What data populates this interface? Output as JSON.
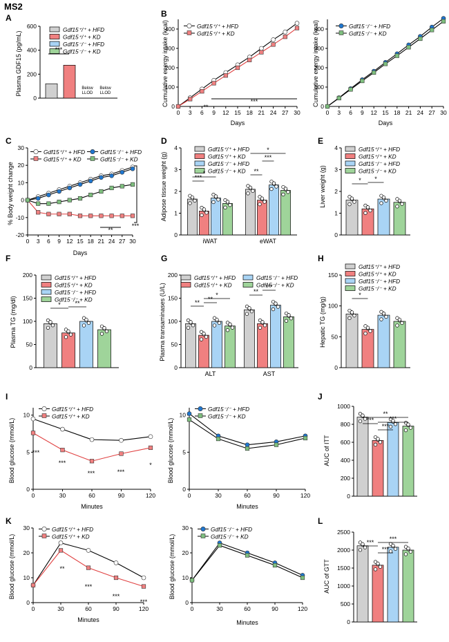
{
  "figure_label": "MS2",
  "colors": {
    "HFD_wt": "#d0d0d0",
    "KD_wt": "#f08080",
    "HFD_ko": "#a9d4f5",
    "KD_ko": "#9fd49a",
    "blue": "#1f77d0",
    "green": "#7fbf7f",
    "black": "#000000",
    "red": "#e04040"
  },
  "legend_names": {
    "wt_HFD": "Gdf15+/+ + HFD",
    "wt_KD": "Gdf15+/+ + KD",
    "ko_HFD": "Gdf15-/- + HFD",
    "ko_KD": "Gdf15-/- + KD",
    "ko_HFD2": "Gdf15-/- +HFD"
  },
  "chart_data": [
    {
      "panel": "A",
      "type": "bar",
      "ylabel": "Plasma GDF15 (pg/mL)",
      "ylim": [
        0,
        600
      ],
      "yticks": [
        "0",
        "200",
        "400",
        "600"
      ],
      "categories": [
        "Gdf15+/+ + HFD",
        "Gdf15+/+ + KD",
        "Gdf15-/- + HFD",
        "Gdf15-/- + KD"
      ],
      "values": [
        120,
        275,
        0,
        0
      ],
      "bar_labels": [
        "",
        "",
        "Below LLOD",
        "Below LLOD"
      ],
      "significance": [
        "***"
      ]
    },
    {
      "panel": "B1",
      "type": "line",
      "ylabel": "Cumulative energy intake (kcal)",
      "xlabel": "Days",
      "xticks": [
        "0",
        "3",
        "6",
        "9",
        "12",
        "15",
        "18",
        "21",
        "24",
        "27",
        "30"
      ],
      "yticks": [
        "0",
        "100",
        "200",
        "300",
        "400"
      ],
      "ylim": [
        0,
        450
      ],
      "series": [
        {
          "name": "Gdf15+/+ + HFD",
          "x": [
            0,
            3,
            6,
            9,
            12,
            15,
            18,
            21,
            24,
            27,
            30
          ],
          "values": [
            0,
            45,
            90,
            135,
            175,
            215,
            255,
            300,
            345,
            385,
            430
          ]
        },
        {
          "name": "Gdf15+/+ + KD",
          "x": [
            0,
            3,
            6,
            9,
            12,
            15,
            18,
            21,
            24,
            27,
            30
          ],
          "values": [
            0,
            38,
            78,
            120,
            160,
            200,
            240,
            280,
            320,
            360,
            405
          ]
        }
      ],
      "significance": [
        "**",
        "***"
      ]
    },
    {
      "panel": "B2",
      "type": "line",
      "xlabel": "Days",
      "xticks": [
        "0",
        "3",
        "6",
        "9",
        "12",
        "15",
        "18",
        "21",
        "24",
        "27",
        "30"
      ],
      "yticks": [
        "0",
        "100",
        "200",
        "300",
        "400"
      ],
      "ylim": [
        0,
        450
      ],
      "series": [
        {
          "name": "Gdf15-/- + HFD",
          "x": [
            0,
            3,
            6,
            9,
            12,
            15,
            18,
            21,
            24,
            27,
            30
          ],
          "values": [
            0,
            45,
            92,
            138,
            182,
            228,
            272,
            318,
            362,
            410,
            455
          ]
        },
        {
          "name": "Gdf15-/- + KD",
          "x": [
            0,
            3,
            6,
            9,
            12,
            15,
            18,
            21,
            24,
            27,
            30
          ],
          "values": [
            0,
            43,
            88,
            132,
            175,
            220,
            262,
            306,
            350,
            395,
            440
          ]
        }
      ]
    },
    {
      "panel": "C",
      "type": "line",
      "ylabel": "% Body weight change",
      "xlabel": "Days",
      "xticks": [
        "0",
        "3",
        "6",
        "9",
        "12",
        "15",
        "18",
        "21",
        "24",
        "27",
        "30"
      ],
      "yticks": [
        "-20",
        "-10",
        "0",
        "10",
        "20",
        "30"
      ],
      "ylim": [
        -20,
        30
      ],
      "series": [
        {
          "name": "Gdf15+/+ + HFD",
          "values": [
            0,
            2,
            4,
            6,
            8,
            10,
            12,
            14,
            15,
            17,
            19
          ]
        },
        {
          "name": "Gdf15+/+ + KD",
          "values": [
            0,
            -7,
            -8,
            -8,
            -8,
            -9,
            -9,
            -9,
            -9,
            -9,
            -9
          ]
        },
        {
          "name": "Gdf15-/- + HFD",
          "values": [
            0,
            1,
            3,
            5,
            7,
            9,
            11,
            13,
            14,
            16,
            18
          ]
        },
        {
          "name": "Gdf15-/- + KD",
          "values": [
            0,
            -2,
            -2,
            -1,
            0,
            1,
            3,
            5,
            7,
            8,
            9
          ]
        }
      ],
      "significance": [
        "**",
        "***"
      ]
    },
    {
      "panel": "D",
      "type": "bar",
      "ylabel": "Adipose tissue weight (g)",
      "ylim": [
        0,
        4
      ],
      "yticks": [
        "0",
        "1",
        "2",
        "3",
        "4"
      ],
      "categories": [
        "iWAT",
        "eWAT"
      ],
      "series": [
        {
          "name": "Gdf15+/+ + HFD",
          "values": [
            1.65,
            2.1
          ]
        },
        {
          "name": "Gdf15+/+ + KD",
          "values": [
            1.1,
            1.6
          ]
        },
        {
          "name": "Gdf15-/- + HFD",
          "values": [
            1.7,
            2.3
          ]
        },
        {
          "name": "Gdf15-/- + KD",
          "values": [
            1.45,
            2.05
          ]
        }
      ],
      "significance": [
        "***",
        "*",
        "**",
        "*",
        "***"
      ]
    },
    {
      "panel": "E",
      "type": "bar",
      "ylabel": "Liver weight (g)",
      "ylim": [
        0,
        4
      ],
      "yticks": [
        "0",
        "1",
        "2",
        "3",
        "4"
      ],
      "series": [
        {
          "name": "Gdf15+/+ + HFD",
          "values": [
            1.6
          ]
        },
        {
          "name": "Gdf15+/+ + KD",
          "values": [
            1.2
          ]
        },
        {
          "name": "Gdf15-/- + HFD",
          "values": [
            1.65
          ]
        },
        {
          "name": "Gdf15-/- + KD",
          "values": [
            1.5
          ]
        }
      ],
      "significance": [
        "*",
        "*"
      ]
    },
    {
      "panel": "F",
      "type": "bar",
      "ylabel": "Plasma TG (mg/dl)",
      "ylim": [
        0,
        200
      ],
      "yticks": [
        "0",
        "50",
        "100",
        "150",
        "200"
      ],
      "series": [
        {
          "name": "Gdf15+/+ + HFD",
          "values": [
            95
          ]
        },
        {
          "name": "Gdf15+/+ + KD",
          "values": [
            75
          ]
        },
        {
          "name": "Gdf15-/- + HFD",
          "values": [
            100
          ]
        },
        {
          "name": "Gdf15-/- + KD",
          "values": [
            82
          ]
        }
      ],
      "significance": [
        "*",
        "**"
      ]
    },
    {
      "panel": "G",
      "type": "bar",
      "ylabel": "Plasma transaminases (U/L)",
      "ylim": [
        0,
        200
      ],
      "yticks": [
        "0",
        "50",
        "100",
        "150",
        "200"
      ],
      "categories": [
        "ALT",
        "AST"
      ],
      "series": [
        {
          "name": "Gdf15+/+ + HFD",
          "values": [
            95,
            125
          ]
        },
        {
          "name": "Gdf15+/+ + KD",
          "values": [
            70,
            95
          ]
        },
        {
          "name": "Gdf15-/- + HFD",
          "values": [
            100,
            135
          ]
        },
        {
          "name": "Gdf15-/- + KD",
          "values": [
            90,
            110
          ]
        }
      ],
      "significance": [
        "**",
        "**",
        "*",
        "**",
        "***"
      ]
    },
    {
      "panel": "H",
      "type": "bar",
      "ylabel": "Hepatic TG (mg/g)",
      "ylim": [
        0,
        150
      ],
      "yticks": [
        "0",
        "50",
        "100",
        "150"
      ],
      "series": [
        {
          "name": "Gdf15+/+ + HFD",
          "values": [
            87
          ]
        },
        {
          "name": "Gdf15+/+ + KD",
          "values": [
            62
          ]
        },
        {
          "name": "Gdf15-/- + HFD",
          "values": [
            85
          ]
        },
        {
          "name": "Gdf15-/- + KD",
          "values": [
            75
          ]
        }
      ],
      "significance": [
        "*"
      ]
    },
    {
      "panel": "I1",
      "type": "line",
      "ylabel": "Blood glucose (mmol/L)",
      "xlabel": "Minutes",
      "xticks": [
        "0",
        "30",
        "60",
        "90",
        "120"
      ],
      "yticks": [
        "0",
        "5",
        "10"
      ],
      "ylim": [
        0,
        11
      ],
      "series": [
        {
          "name": "Gdf15+/+ + HFD",
          "x": [
            0,
            30,
            60,
            90,
            120
          ],
          "values": [
            9.5,
            8.1,
            6.7,
            6.6,
            7.1
          ]
        },
        {
          "name": "Gdf15+/+ + KD",
          "x": [
            0,
            30,
            60,
            90,
            120
          ],
          "values": [
            7.6,
            5.3,
            3.8,
            4.8,
            5.6
          ]
        }
      ],
      "significance": [
        "***",
        "***",
        "***",
        "***",
        "*"
      ]
    },
    {
      "panel": "I2",
      "type": "line",
      "ylabel": "Blood glucose (mmol/L)",
      "xlabel": "Minutes",
      "xticks": [
        "0",
        "30",
        "60",
        "90",
        "120"
      ],
      "yticks": [
        "0",
        "5",
        "10"
      ],
      "ylim": [
        0,
        11
      ],
      "series": [
        {
          "name": "Gdf15-/- + HFD",
          "x": [
            0,
            30,
            60,
            90,
            120
          ],
          "values": [
            10.2,
            7.2,
            6.0,
            6.4,
            7.2
          ]
        },
        {
          "name": "Gdf15-/- + KD",
          "x": [
            0,
            30,
            60,
            90,
            120
          ],
          "values": [
            9.4,
            6.8,
            5.5,
            6.0,
            6.9
          ]
        }
      ]
    },
    {
      "panel": "J",
      "type": "bar",
      "ylabel": "AUC of ITT",
      "ylim": [
        0,
        1000
      ],
      "yticks": [
        "0",
        "200",
        "400",
        "600",
        "800",
        "1000"
      ],
      "series": [
        {
          "name": "Gdf15+/+ + HFD",
          "values": [
            880
          ]
        },
        {
          "name": "Gdf15+/+ + KD",
          "values": [
            620
          ]
        },
        {
          "name": "Gdf15-/- + HFD",
          "values": [
            820
          ]
        },
        {
          "name": "Gdf15-/- + KD",
          "values": [
            780
          ]
        }
      ],
      "significance": [
        "***",
        "**",
        "***",
        "***"
      ]
    },
    {
      "panel": "K1",
      "type": "line",
      "ylabel": "Blood glucose (mmol/L)",
      "xlabel": "Minutes",
      "xticks": [
        "0",
        "30",
        "60",
        "90",
        "120"
      ],
      "yticks": [
        "0",
        "10",
        "20",
        "30"
      ],
      "ylim": [
        0,
        30
      ],
      "series": [
        {
          "name": "Gdf15+/+ + HFD",
          "x": [
            0,
            30,
            60,
            90,
            120
          ],
          "values": [
            7,
            24,
            21,
            16,
            10
          ]
        },
        {
          "name": "Gdf15+/+ + KD",
          "x": [
            0,
            30,
            60,
            90,
            120
          ],
          "values": [
            7,
            21,
            14,
            10,
            6.5
          ]
        }
      ],
      "significance": [
        "**",
        "***",
        "***",
        "***"
      ]
    },
    {
      "panel": "K2",
      "type": "line",
      "ylabel": "Blood glucose (mmol/L)",
      "xlabel": "Minutes",
      "xticks": [
        "0",
        "30",
        "60",
        "90",
        "120"
      ],
      "yticks": [
        "0",
        "10",
        "20",
        "30"
      ],
      "ylim": [
        0,
        30
      ],
      "series": [
        {
          "name": "Gdf15-/- + HFD",
          "x": [
            0,
            30,
            60,
            90,
            120
          ],
          "values": [
            9,
            24,
            20,
            16,
            11
          ]
        },
        {
          "name": "Gdf15-/- + KD",
          "x": [
            0,
            30,
            60,
            90,
            120
          ],
          "values": [
            9,
            23,
            19,
            15,
            10
          ]
        }
      ]
    },
    {
      "panel": "L",
      "type": "bar",
      "ylabel": "AUC of GTT",
      "ylim": [
        0,
        2500
      ],
      "yticks": [
        "0",
        "500",
        "1000",
        "1500",
        "2000",
        "2500"
      ],
      "series": [
        {
          "name": "Gdf15+/+ + HFD",
          "values": [
            2120
          ]
        },
        {
          "name": "Gdf15+/+ + KD",
          "values": [
            1580
          ]
        },
        {
          "name": "Gdf15-/- + HFD",
          "values": [
            2080
          ]
        },
        {
          "name": "Gdf15-/- + KD",
          "values": [
            2000
          ]
        }
      ],
      "significance": [
        "***",
        "***",
        "***"
      ]
    }
  ]
}
